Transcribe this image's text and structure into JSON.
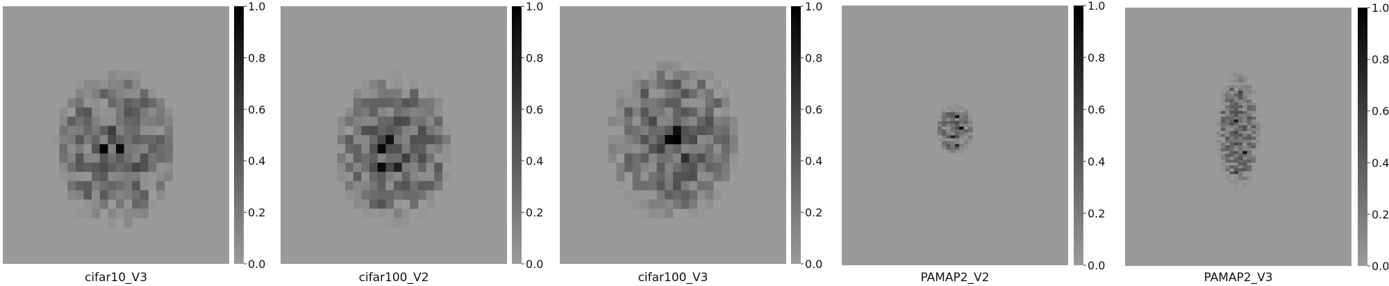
{
  "figure": {
    "background": "#ffffff",
    "colormap": {
      "low": "#9a9a9a",
      "high": "#000000"
    }
  },
  "chart_data": [
    {
      "type": "heatmap",
      "title": "cifar10_V3",
      "colorbar": {
        "range": [
          0.0,
          1.0
        ],
        "ticks": [
          "0.0",
          "0.2",
          "0.4",
          "0.6",
          "0.8",
          "1.0"
        ]
      },
      "grid": {
        "cols": 28,
        "rows": 28
      },
      "baseline": 0.0,
      "blob": {
        "center": [
          14,
          15.5
        ],
        "radius": [
          7.6,
          8.4
        ],
        "mean": 0.35,
        "peak": 0.9,
        "hotspots": [
          [
            12,
            15,
            1.0
          ],
          [
            14,
            15,
            0.95
          ],
          [
            13,
            13,
            0.6
          ],
          [
            16,
            17,
            0.55
          ],
          [
            12,
            17,
            0.5
          ]
        ]
      }
    },
    {
      "type": "heatmap",
      "title": "cifar100_V2",
      "colorbar": {
        "range": [
          0.0,
          1.0
        ],
        "ticks": [
          "0.0",
          "0.2",
          "0.4",
          "0.6",
          "0.8",
          "1.0"
        ]
      },
      "grid": {
        "cols": 28,
        "rows": 28
      },
      "baseline": 0.0,
      "blob": {
        "center": [
          14,
          15.5
        ],
        "radius": [
          7.2,
          8.0
        ],
        "mean": 0.4,
        "peak": 0.9,
        "hotspots": [
          [
            12,
            15,
            0.95
          ],
          [
            13,
            14,
            0.9
          ],
          [
            12,
            17,
            0.95
          ],
          [
            14,
            17,
            0.8
          ],
          [
            15,
            16,
            0.6
          ]
        ]
      }
    },
    {
      "type": "heatmap",
      "title": "cifar100_V3",
      "colorbar": {
        "range": [
          0.0,
          1.0
        ],
        "ticks": [
          "0.0",
          "0.2",
          "0.4",
          "0.6",
          "0.8",
          "1.0"
        ]
      },
      "grid": {
        "cols": 28,
        "rows": 28
      },
      "baseline": 0.0,
      "blob": {
        "center": [
          14,
          14.5
        ],
        "radius": [
          8.0,
          8.6
        ],
        "mean": 0.4,
        "peak": 0.9,
        "hotspots": [
          [
            14,
            14,
            1.0
          ],
          [
            13,
            14,
            0.95
          ],
          [
            14,
            13,
            0.9
          ],
          [
            15,
            16,
            0.7
          ],
          [
            12,
            15,
            0.6
          ]
        ]
      }
    },
    {
      "type": "heatmap",
      "title": "PAMAP2_V2",
      "colorbar": {
        "range": [
          0.0,
          1.0
        ],
        "ticks": [
          "0.0",
          "0.2",
          "0.4",
          "0.6",
          "0.8",
          "1.0"
        ]
      },
      "grid": {
        "cols": 52,
        "rows": 90
      },
      "baseline": 0.0,
      "blob": {
        "center": [
          26,
          43
        ],
        "radius": [
          4.2,
          8.5
        ],
        "mean": 0.35,
        "peak": 0.9,
        "hotspots": [
          [
            26,
            38,
            0.9
          ],
          [
            27,
            42,
            1.0
          ],
          [
            25,
            45,
            0.8
          ],
          [
            26,
            48,
            0.7
          ]
        ]
      }
    },
    {
      "type": "heatmap",
      "title": "PAMAP2_V3",
      "colorbar": {
        "range": [
          0.0,
          1.0
        ],
        "ticks": [
          "0.0",
          "0.2",
          "0.4",
          "0.6",
          "0.8",
          "1.0"
        ]
      },
      "grid": {
        "cols": 52,
        "rows": 90
      },
      "baseline": 0.0,
      "blob": {
        "center": [
          26,
          43
        ],
        "radius": [
          4.8,
          20
        ],
        "mean": 0.35,
        "peak": 0.9,
        "hotspots": [
          [
            25,
            39,
            0.8
          ],
          [
            27,
            50,
            0.9
          ],
          [
            26,
            29,
            0.6
          ],
          [
            25,
            57,
            0.6
          ]
        ]
      }
    }
  ]
}
